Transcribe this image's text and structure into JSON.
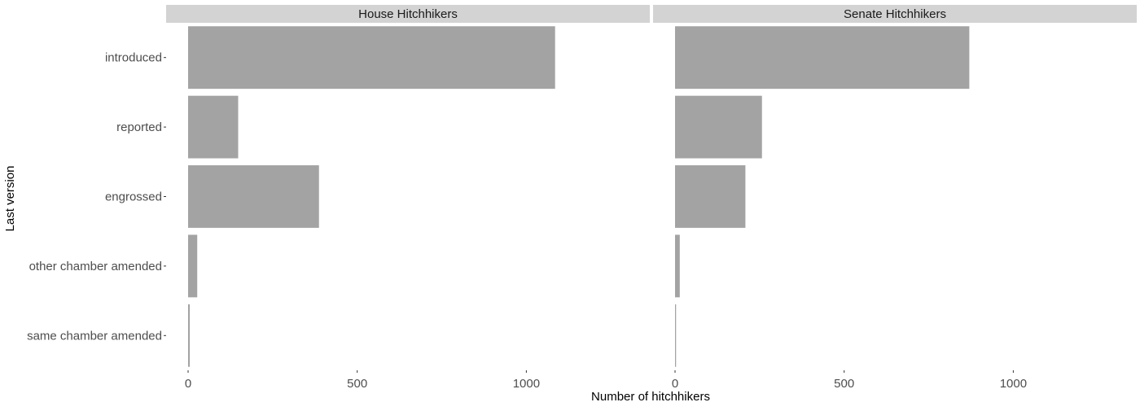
{
  "chart_data": {
    "type": "bar",
    "orientation": "horizontal",
    "categories": [
      "introduced",
      "reported",
      "engrossed",
      "other chamber amended",
      "same chamber amended"
    ],
    "xlabel": "Number of hitchhikers",
    "ylabel": "Last version",
    "xlim": [
      -65,
      1365
    ],
    "xticks": [
      0,
      500,
      1000
    ],
    "grid": false,
    "bar_color": "#a3a3a3",
    "strip_color": "#d3d3d3",
    "panels": [
      {
        "title": "House Hitchhikers",
        "values": [
          1085,
          148,
          387,
          27,
          5
        ]
      },
      {
        "title": "Senate Hitchhikers",
        "values": [
          870,
          257,
          208,
          14,
          3
        ]
      }
    ]
  }
}
